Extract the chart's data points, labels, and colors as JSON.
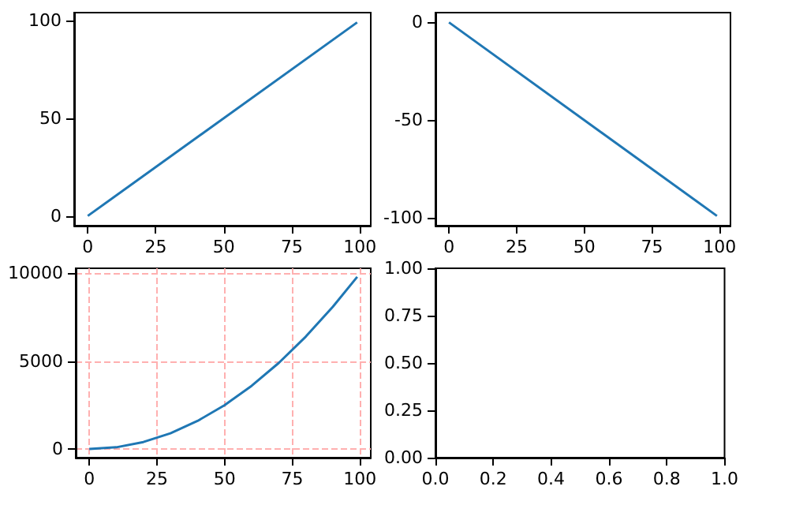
{
  "chart_data": [
    {
      "type": "line",
      "x": [
        0,
        99
      ],
      "series": [
        {
          "color": "#1f77b4",
          "values": [
            0,
            99
          ]
        }
      ],
      "xlim": [
        -5,
        104
      ],
      "ylim": [
        -5,
        104
      ],
      "xticks": [
        0,
        25,
        50,
        75,
        100
      ],
      "yticks": [
        0,
        50,
        100
      ]
    },
    {
      "type": "line",
      "x": [
        0,
        99
      ],
      "series": [
        {
          "color": "#1f77b4",
          "values": [
            0,
            -99
          ]
        }
      ],
      "xlim": [
        -5,
        104
      ],
      "ylim": [
        -104,
        5
      ],
      "xticks": [
        0,
        25,
        50,
        75,
        100
      ],
      "yticks": [
        0,
        -50,
        -100
      ]
    },
    {
      "type": "line",
      "x": [
        0,
        10,
        20,
        30,
        40,
        50,
        60,
        70,
        80,
        90,
        99
      ],
      "series": [
        {
          "color": "#1f77b4",
          "values": [
            0,
            100,
            400,
            900,
            1600,
            2500,
            3600,
            4900,
            6400,
            8100,
            9800
          ]
        }
      ],
      "xlim": [
        -5,
        104
      ],
      "ylim": [
        -490,
        10290
      ],
      "xticks": [
        0,
        25,
        50,
        75,
        100
      ],
      "yticks": [
        0,
        5000,
        10000
      ],
      "grid": true
    },
    {
      "type": "line",
      "xlim": [
        0,
        1
      ],
      "ylim": [
        0,
        1
      ],
      "xticks": [
        {
          "value": 0,
          "label": "0.0"
        },
        {
          "value": 0.2,
          "label": "0.2"
        },
        {
          "value": 0.4,
          "label": "0.4"
        },
        {
          "value": 0.6,
          "label": "0.6"
        },
        {
          "value": 0.8,
          "label": "0.8"
        },
        {
          "value": 1,
          "label": "1.0"
        }
      ],
      "yticks": [
        {
          "value": 0,
          "label": "0.00"
        },
        {
          "value": 0.25,
          "label": "0.25"
        },
        {
          "value": 0.5,
          "label": "0.50"
        },
        {
          "value": 0.75,
          "label": "0.75"
        },
        {
          "value": 1,
          "label": "1.00"
        }
      ]
    }
  ]
}
